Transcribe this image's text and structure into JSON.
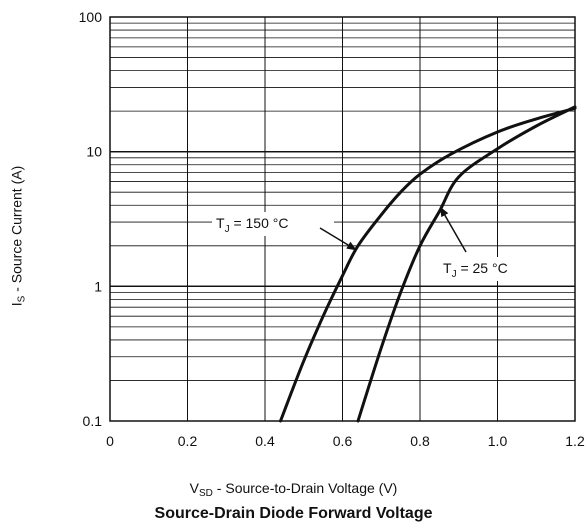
{
  "chart_data": {
    "type": "line",
    "title": "Source-Drain Diode Forward Voltage",
    "xlabel": {
      "main": "V",
      "sub": "SD",
      "rest": " - Source-to-Drain Voltage (V)"
    },
    "ylabel": {
      "main": "I",
      "sub": "S",
      "rest": " - Source Current (A)"
    },
    "xlim": [
      0,
      1.2
    ],
    "ylim": [
      0.1,
      100
    ],
    "yscale": "log",
    "grid": true,
    "x_ticks": [
      0,
      0.2,
      0.4,
      0.6,
      0.8,
      1.0,
      1.2
    ],
    "x_tick_labels": [
      "0",
      "0.2",
      "0.4",
      "0.6",
      "0.8",
      "1.0",
      "1.2"
    ],
    "y_ticks": [
      0.1,
      1,
      10,
      100
    ],
    "y_tick_labels": [
      "0.1",
      "1",
      "10",
      "100"
    ],
    "series": [
      {
        "name": "T_J = 150 °C",
        "points": [
          [
            0.44,
            0.1
          ],
          [
            0.5,
            0.28
          ],
          [
            0.55,
            0.6
          ],
          [
            0.6,
            1.2
          ],
          [
            0.64,
            2.0
          ],
          [
            0.7,
            3.4
          ],
          [
            0.75,
            5.0
          ],
          [
            0.8,
            6.8
          ],
          [
            0.88,
            9.6
          ],
          [
            1.0,
            14.0
          ],
          [
            1.1,
            17.5
          ],
          [
            1.2,
            21.0
          ]
        ]
      },
      {
        "name": "T_J = 25 °C",
        "points": [
          [
            0.64,
            0.1
          ],
          [
            0.7,
            0.35
          ],
          [
            0.75,
            0.9
          ],
          [
            0.8,
            2.0
          ],
          [
            0.85,
            3.6
          ],
          [
            0.9,
            6.5
          ],
          [
            1.0,
            10.5
          ],
          [
            1.1,
            15.5
          ],
          [
            1.2,
            21.5
          ]
        ]
      }
    ],
    "annotations": [
      {
        "series": "T_J = 150 °C",
        "label": {
          "main": "T",
          "sub": "J",
          "rest": " = 150 °C"
        },
        "point": [
          0.64,
          2.0
        ]
      },
      {
        "series": "T_J = 25 °C",
        "label": {
          "main": "T",
          "sub": "J",
          "rest": " = 25 °C"
        },
        "point": [
          0.85,
          3.6
        ]
      }
    ],
    "colors": {
      "line": "#111111",
      "grid": "#111111",
      "background": "#ffffff"
    }
  }
}
